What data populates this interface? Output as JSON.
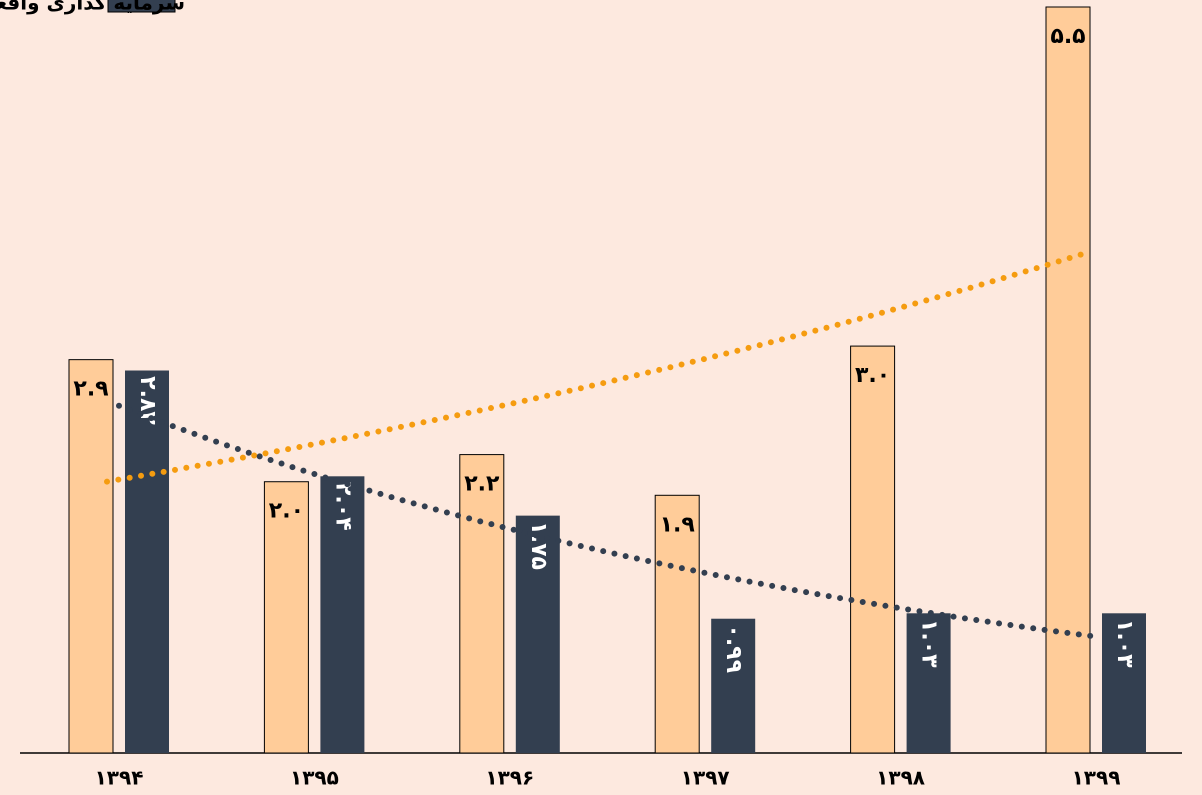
{
  "chart_data": {
    "type": "bar",
    "categories": [
      "۱۳۹۴",
      "۱۳۹۵",
      "۱۳۹۶",
      "۱۳۹۷",
      "۱۳۹۸",
      "۱۳۹۹"
    ],
    "series": [
      {
        "color": "#ffcc99",
        "trendline": "exponential",
        "trend_color": "#f59c10",
        "values": [
          2.9,
          2.0,
          2.2,
          1.9,
          3.0,
          5.5
        ],
        "value_labels": [
          "۲.۹",
          "۲.۰",
          "۲.۲",
          "۱.۹",
          "۳.۰",
          "۵.۵"
        ]
      },
      {
        "name": "سرمایه گذاری واقعی",
        "color": "#333f50",
        "trendline": "exponential",
        "trend_color": "#333f50",
        "values": [
          2.82,
          2.04,
          1.75,
          0.99,
          1.03,
          1.03
        ],
        "value_labels": [
          "۲.۸۲",
          "۲.۰۴",
          "۱.۷۵",
          "۰.۹۹",
          "۱.۰۳",
          "۱.۰۳"
        ]
      }
    ],
    "ylim": [
      0,
      5.5
    ]
  }
}
